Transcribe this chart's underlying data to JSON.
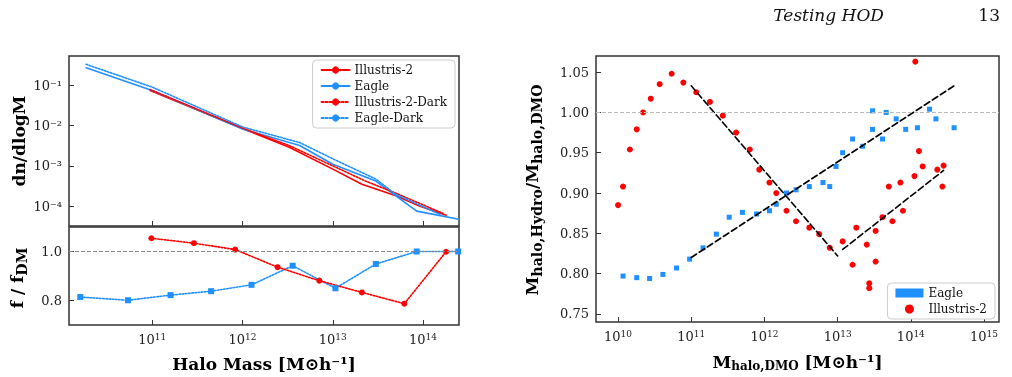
{
  "chart_data": [
    {
      "type": "line",
      "ylabel": "dn/dlogM",
      "xlim": [
        12000000000.0,
        250000000000000.0
      ],
      "xticks": [
        {
          "value": 100000000000.0,
          "label": null
        },
        {
          "value": 1000000000000.0,
          "label": null
        },
        {
          "value": 10000000000000.0,
          "label": null
        },
        {
          "value": 100000000000000.0,
          "label": null
        }
      ],
      "ylim": [
        3.2e-05,
        0.54
      ],
      "yticks": [
        {
          "value": 0.0001,
          "label": "10⁻⁴"
        },
        {
          "value": 0.001,
          "label": "10⁻³"
        },
        {
          "value": 0.01,
          "label": "10⁻²"
        },
        {
          "value": 0.1,
          "label": "10⁻¹"
        }
      ],
      "log": "xy",
      "tick_labels": "y",
      "legend": "top right",
      "marker": "none",
      "grid": false,
      "series": [
        {
          "name": "Illustris-2",
          "color": "#ff0000",
          "line_style": "solid",
          "x": [
            95000000000.0,
            1000000000000.0,
            3300000000000.0,
            10000000000000.0,
            21000000000000.0,
            50000000000000.0,
            91000000000000.0,
            180000000000000.0
          ],
          "values": [
            0.075,
            0.0085,
            0.0029,
            0.00083,
            0.00035,
            0.00018,
            0.0001,
            5.9e-05
          ]
        },
        {
          "name": "Eagle",
          "color": "#1e90ff",
          "line_style": "solid",
          "x": [
            18600000000.0,
            100000000000.0,
            1000000000000.0,
            4300000000000.0,
            10000000000000.0,
            30000000000000.0,
            50000000000000.0,
            85000000000000.0,
            250000000000000.0
          ],
          "values": [
            0.275,
            0.075,
            0.0083,
            0.0032,
            0.0011,
            0.00042,
            0.00018,
            7.5e-05,
            4.7e-05
          ]
        },
        {
          "name": "Illustris-2-Dark",
          "color": "#ff0000",
          "line_style": "dotted",
          "x": [
            95000000000.0,
            1000000000000.0,
            3300000000000.0,
            10000000000000.0,
            23000000000000.0,
            50000000000000.0,
            165000000000000.0
          ],
          "values": [
            0.079,
            0.0087,
            0.0032,
            0.001,
            0.00042,
            0.00021,
            6.6e-05
          ]
        },
        {
          "name": "Eagle-Dark",
          "color": "#1e90ff",
          "line_style": "dotted",
          "x": [
            18600000000.0,
            100000000000.0,
            1000000000000.0,
            4300000000000.0,
            10000000000000.0,
            30000000000000.0,
            50000000000000.0,
            155000000000000.0
          ],
          "values": [
            0.335,
            0.091,
            0.0093,
            0.0038,
            0.0015,
            0.00047,
            0.000195,
            6.2e-05
          ]
        }
      ]
    },
    {
      "type": "line",
      "xlabel": "Halo Mass [M⊙h⁻¹]",
      "ylabel": "f / f$_{DM}$",
      "xlim": [
        12000000000.0,
        250000000000000.0
      ],
      "xticks": [
        {
          "value": 100000000000.0,
          "label": "10$^{11}$"
        },
        {
          "value": 1000000000000.0,
          "label": "10$^{12}$"
        },
        {
          "value": 10000000000000.0,
          "label": "10$^{13}$"
        },
        {
          "value": 100000000000000.0,
          "label": "10$^{14}$"
        }
      ],
      "ylim": [
        0.7,
        1.1
      ],
      "yticks": [
        0.8,
        {
          "value": 1.0,
          "label": "1.0"
        }
      ],
      "log": "x",
      "line_style": "dotted",
      "grid": false,
      "ref_lines": [
        {
          "axis": "y",
          "value": 1.0,
          "label": null,
          "color": "#888888",
          "line_style": "dashed"
        }
      ],
      "series": [
        {
          "color": "#1e90ff",
          "marker": "square",
          "x": [
            16000000000.0,
            54000000000.0,
            160000000000.0,
            450000000000.0,
            1260000000000.0,
            3600000000000.0,
            10700000000000.0,
            30000000000000.0,
            85000000000000.0,
            245000000000000.0
          ],
          "values": [
            0.814,
            0.801,
            0.822,
            0.838,
            0.864,
            0.942,
            0.85,
            0.949,
            1.0,
            1.0
          ]
        },
        {
          "color": "#ff0000",
          "marker": "circle",
          "x": [
            98000000000.0,
            290000000000.0,
            830000000000.0,
            2450000000000.0,
            7100000000000.0,
            21000000000000.0,
            62000000000000.0,
            180000000000000.0
          ],
          "values": [
            1.054,
            1.034,
            1.008,
            0.936,
            0.881,
            0.833,
            0.787,
            0.999
          ]
        }
      ]
    },
    {
      "type": "scatter",
      "xlabel": "M$_{halo,DMO}$ [M⊙h⁻¹]",
      "ylabel": "M$_{halo,Hydro}$/M$_{halo,DMO}$",
      "xlim": [
        5000000000.0,
        1600000000000000.0
      ],
      "xticks": [
        {
          "value": 10000000000.0,
          "label": "10$^{10}$"
        },
        {
          "value": 100000000000.0,
          "label": "10$^{11}$"
        },
        {
          "value": 1000000000000.0,
          "label": "10$^{12}$"
        },
        {
          "value": 10000000000000.0,
          "label": "10$^{13}$"
        },
        {
          "value": 100000000000000.0,
          "label": "10$^{14}$"
        },
        {
          "value": 1000000000000000.0,
          "label": "10$^{15}$"
        }
      ],
      "ylim": [
        0.74,
        1.07
      ],
      "yticks": [
        0.75,
        {
          "value": 0.8,
          "label": "0.80"
        },
        0.85,
        {
          "value": 0.9,
          "label": "0.90"
        },
        0.95,
        {
          "value": 1.0,
          "label": "1.00"
        },
        1.05
      ],
      "log": "x",
      "legend": "bottom right",
      "grid": false,
      "annotations": [
        "Testing HOD",
        "13"
      ],
      "ref_lines": [
        {
          "axis": "y",
          "value": 1.0,
          "label": null,
          "color": "#bbbbbb",
          "line_style": "dashed"
        }
      ],
      "series": [
        {
          "name": "Eagle",
          "color": "#1e90ff",
          "marker": "square",
          "x": [
            11700000000.0,
            18000000000.0,
            27000000000.0,
            41000000000.0,
            63000000000.0,
            95000000000.0,
            145000000000.0,
            220000000000.0,
            330000000000.0,
            500000000000.0,
            780000000000.0,
            1170000000000.0,
            1450000000000.0,
            2000000000000.0,
            2700000000000.0,
            4100000000000.0,
            6300000000000.0,
            7800000000000.0,
            9500000000000.0,
            11700000000000.0,
            16000000000000.0,
            22000000000000.0,
            30000000000000.0,
            41000000000000.0,
            46000000000000.0,
            63000000000000.0,
            85000000000000.0,
            123000000000000.0,
            180000000000000.0,
            220000000000000.0,
            390000000000000.0,
            30000000000000.0
          ],
          "values": [
            0.797,
            0.795,
            0.794,
            0.799,
            0.807,
            0.818,
            0.832,
            0.849,
            0.87,
            0.876,
            0.874,
            0.878,
            0.886,
            0.9,
            0.904,
            0.908,
            0.913,
            0.908,
            0.933,
            0.95,
            0.967,
            0.958,
            0.979,
            0.967,
            1.0,
            0.992,
            0.979,
            0.981,
            1.004,
            0.992,
            0.981,
            1.002
          ]
        },
        {
          "name": "Illustris-2",
          "color": "#ff0000",
          "marker": "circle",
          "x": [
            10000000000.0,
            11700000000.0,
            14500000000.0,
            18000000000.0,
            22000000000.0,
            28000000000.0,
            37000000000.0,
            54000000000.0,
            78000000000.0,
            117000000000.0,
            180000000000.0,
            270000000000.0,
            410000000000.0,
            630000000000.0,
            850000000000.0,
            1170000000000.0,
            1450000000000.0,
            2000000000000.0,
            2700000000000.0,
            4100000000000.0,
            5600000000000.0,
            7800000000000.0,
            11700000000000.0,
            18000000000000.0,
            25000000000000.0,
            33000000000000.0,
            41000000000000.0,
            56000000000000.0,
            78000000000000.0,
            33000000000000.0,
            16000000000000.0,
            27000000000000.0,
            27000000000000.0,
            50000000000000.0,
            72000000000000.0,
            112000000000000.0,
            129000000000000.0,
            145000000000000.0,
            230000000000000.0,
            270000000000000.0,
            280000000000000.0,
            115000000000000.0
          ],
          "values": [
            0.885,
            0.908,
            0.954,
            0.979,
            1.0,
            1.017,
            1.035,
            1.048,
            1.037,
            1.025,
            1.013,
            0.996,
            0.975,
            0.954,
            0.929,
            0.913,
            0.9,
            0.878,
            0.865,
            0.857,
            0.849,
            0.832,
            0.84,
            0.857,
            0.836,
            0.853,
            0.87,
            0.865,
            0.878,
            0.815,
            0.811,
            0.788,
            0.782,
            0.908,
            0.913,
            0.921,
            0.952,
            0.933,
            0.929,
            0.908,
            0.934,
            1.063
          ]
        },
        {
          "type": "line",
          "color": "#000000",
          "line_style": "dashed",
          "marker": "none",
          "x": [
            100000000000.0,
            390000000000000.0
          ],
          "values": [
            0.82,
            1.033
          ]
        },
        {
          "type": "line",
          "color": "#000000",
          "line_style": "dashed",
          "marker": "none",
          "x": [
            100000000000.0,
            10000000000000.0
          ],
          "values": [
            1.033,
            0.822
          ]
        },
        {
          "type": "line",
          "color": "#000000",
          "line_style": "dashed",
          "marker": "none",
          "x": [
            11700000000000.0,
            280000000000000.0
          ],
          "values": [
            0.83,
            0.928
          ]
        }
      ]
    }
  ]
}
